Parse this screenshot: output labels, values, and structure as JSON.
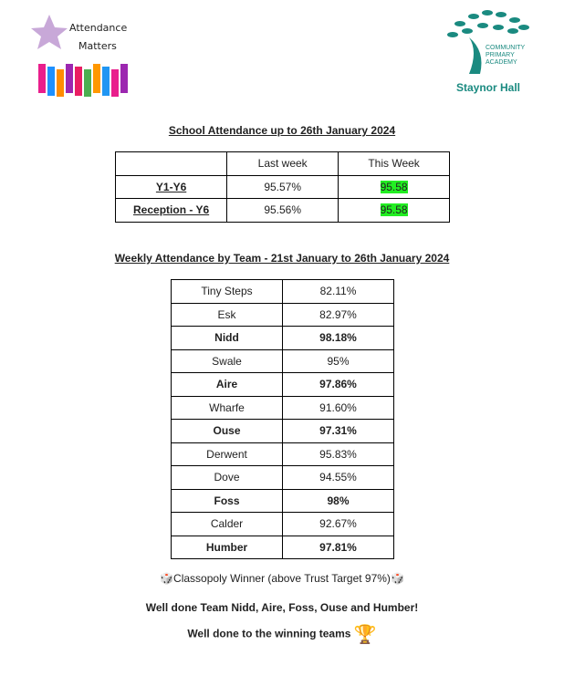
{
  "logos": {
    "left_text": [
      "Attendance",
      "Matters"
    ],
    "right_text": [
      "COMMUNITY",
      "PRIMARY",
      "ACADEMY",
      "Staynor Hall"
    ]
  },
  "school": {
    "title": "School Attendance up to 26th January 2024",
    "headers": [
      "",
      "Last week",
      "This Week"
    ],
    "rows": [
      {
        "label": "Y1-Y6",
        "last": "95.57%",
        "this": "95.58"
      },
      {
        "label": "Reception - Y6",
        "last": "95.56%",
        "this": "95.58"
      }
    ],
    "highlight_color": "#22ee22"
  },
  "teams": {
    "title": "Weekly Attendance by Team -  21st January to 26th January 2024",
    "rows": [
      {
        "team": "Tiny Steps",
        "value": "82.11%",
        "bold": false
      },
      {
        "team": "Esk",
        "value": "82.97%",
        "bold": false
      },
      {
        "team": "Nidd",
        "value": "98.18%",
        "bold": true
      },
      {
        "team": "Swale",
        "value": "95%",
        "bold": false
      },
      {
        "team": "Aire",
        "value": "97.86%",
        "bold": true
      },
      {
        "team": "Wharfe",
        "value": "91.60%",
        "bold": false
      },
      {
        "team": "Ouse",
        "value": "97.31%",
        "bold": true
      },
      {
        "team": "Derwent",
        "value": "95.83%",
        "bold": false
      },
      {
        "team": "Dove",
        "value": "94.55%",
        "bold": false
      },
      {
        "team": "Foss",
        "value": "98%",
        "bold": true
      },
      {
        "team": "Calder",
        "value": "92.67%",
        "bold": false
      },
      {
        "team": "Humber",
        "value": "97.81%",
        "bold": true
      }
    ]
  },
  "footer": {
    "classopoly": "Classopoly Winner (above Trust Target 97%)",
    "dice_icon": "🎲",
    "well_done_teams": "Well done Team Nidd, Aire, Foss, Ouse and Humber!",
    "well_done_winning": "Well done to the winning teams",
    "trophy_icon": "🏆"
  }
}
